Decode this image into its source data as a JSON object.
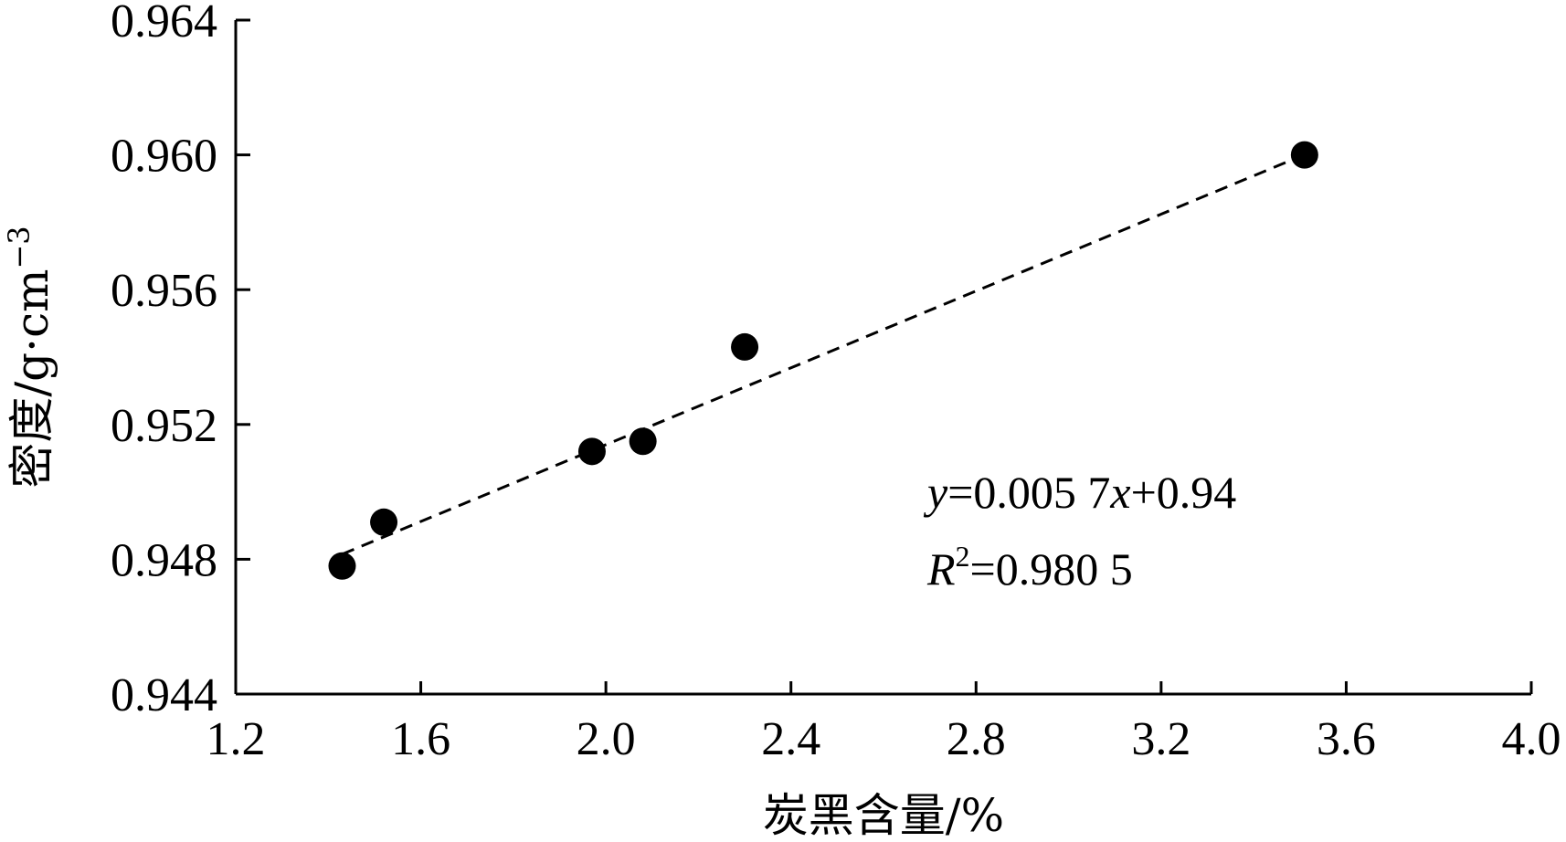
{
  "chart_data": {
    "type": "scatter",
    "xlabel": "炭黑含量/%",
    "ylabel": "密度/g·cm",
    "ylabel_superscript": "−3",
    "xlim": [
      1.2,
      4.0
    ],
    "ylim": [
      0.944,
      0.964
    ],
    "x_ticks": [
      "1.2",
      "1.6",
      "2.0",
      "2.4",
      "2.8",
      "3.2",
      "3.6",
      "4.0"
    ],
    "y_ticks": [
      "0.944",
      "0.948",
      "0.952",
      "0.956",
      "0.960",
      "0.964"
    ],
    "grid": false,
    "series": [
      {
        "points": [
          {
            "x": 1.43,
            "y": 0.9478
          },
          {
            "x": 1.52,
            "y": 0.9491
          },
          {
            "x": 1.97,
            "y": 0.9512
          },
          {
            "x": 2.08,
            "y": 0.9515
          },
          {
            "x": 2.3,
            "y": 0.9543
          },
          {
            "x": 3.51,
            "y": 0.96
          }
        ]
      }
    ],
    "fit_line": {
      "x_range": [
        1.43,
        3.51
      ],
      "slope": 0.0057,
      "intercept": 0.94
    },
    "annotations": {
      "equation_y": "y",
      "equation_mid": "=0.005 7",
      "equation_x": "x",
      "equation_end": "+0.94",
      "r2_R": "R",
      "r2_sup": "2",
      "r2_value": "=0.980 5"
    }
  }
}
